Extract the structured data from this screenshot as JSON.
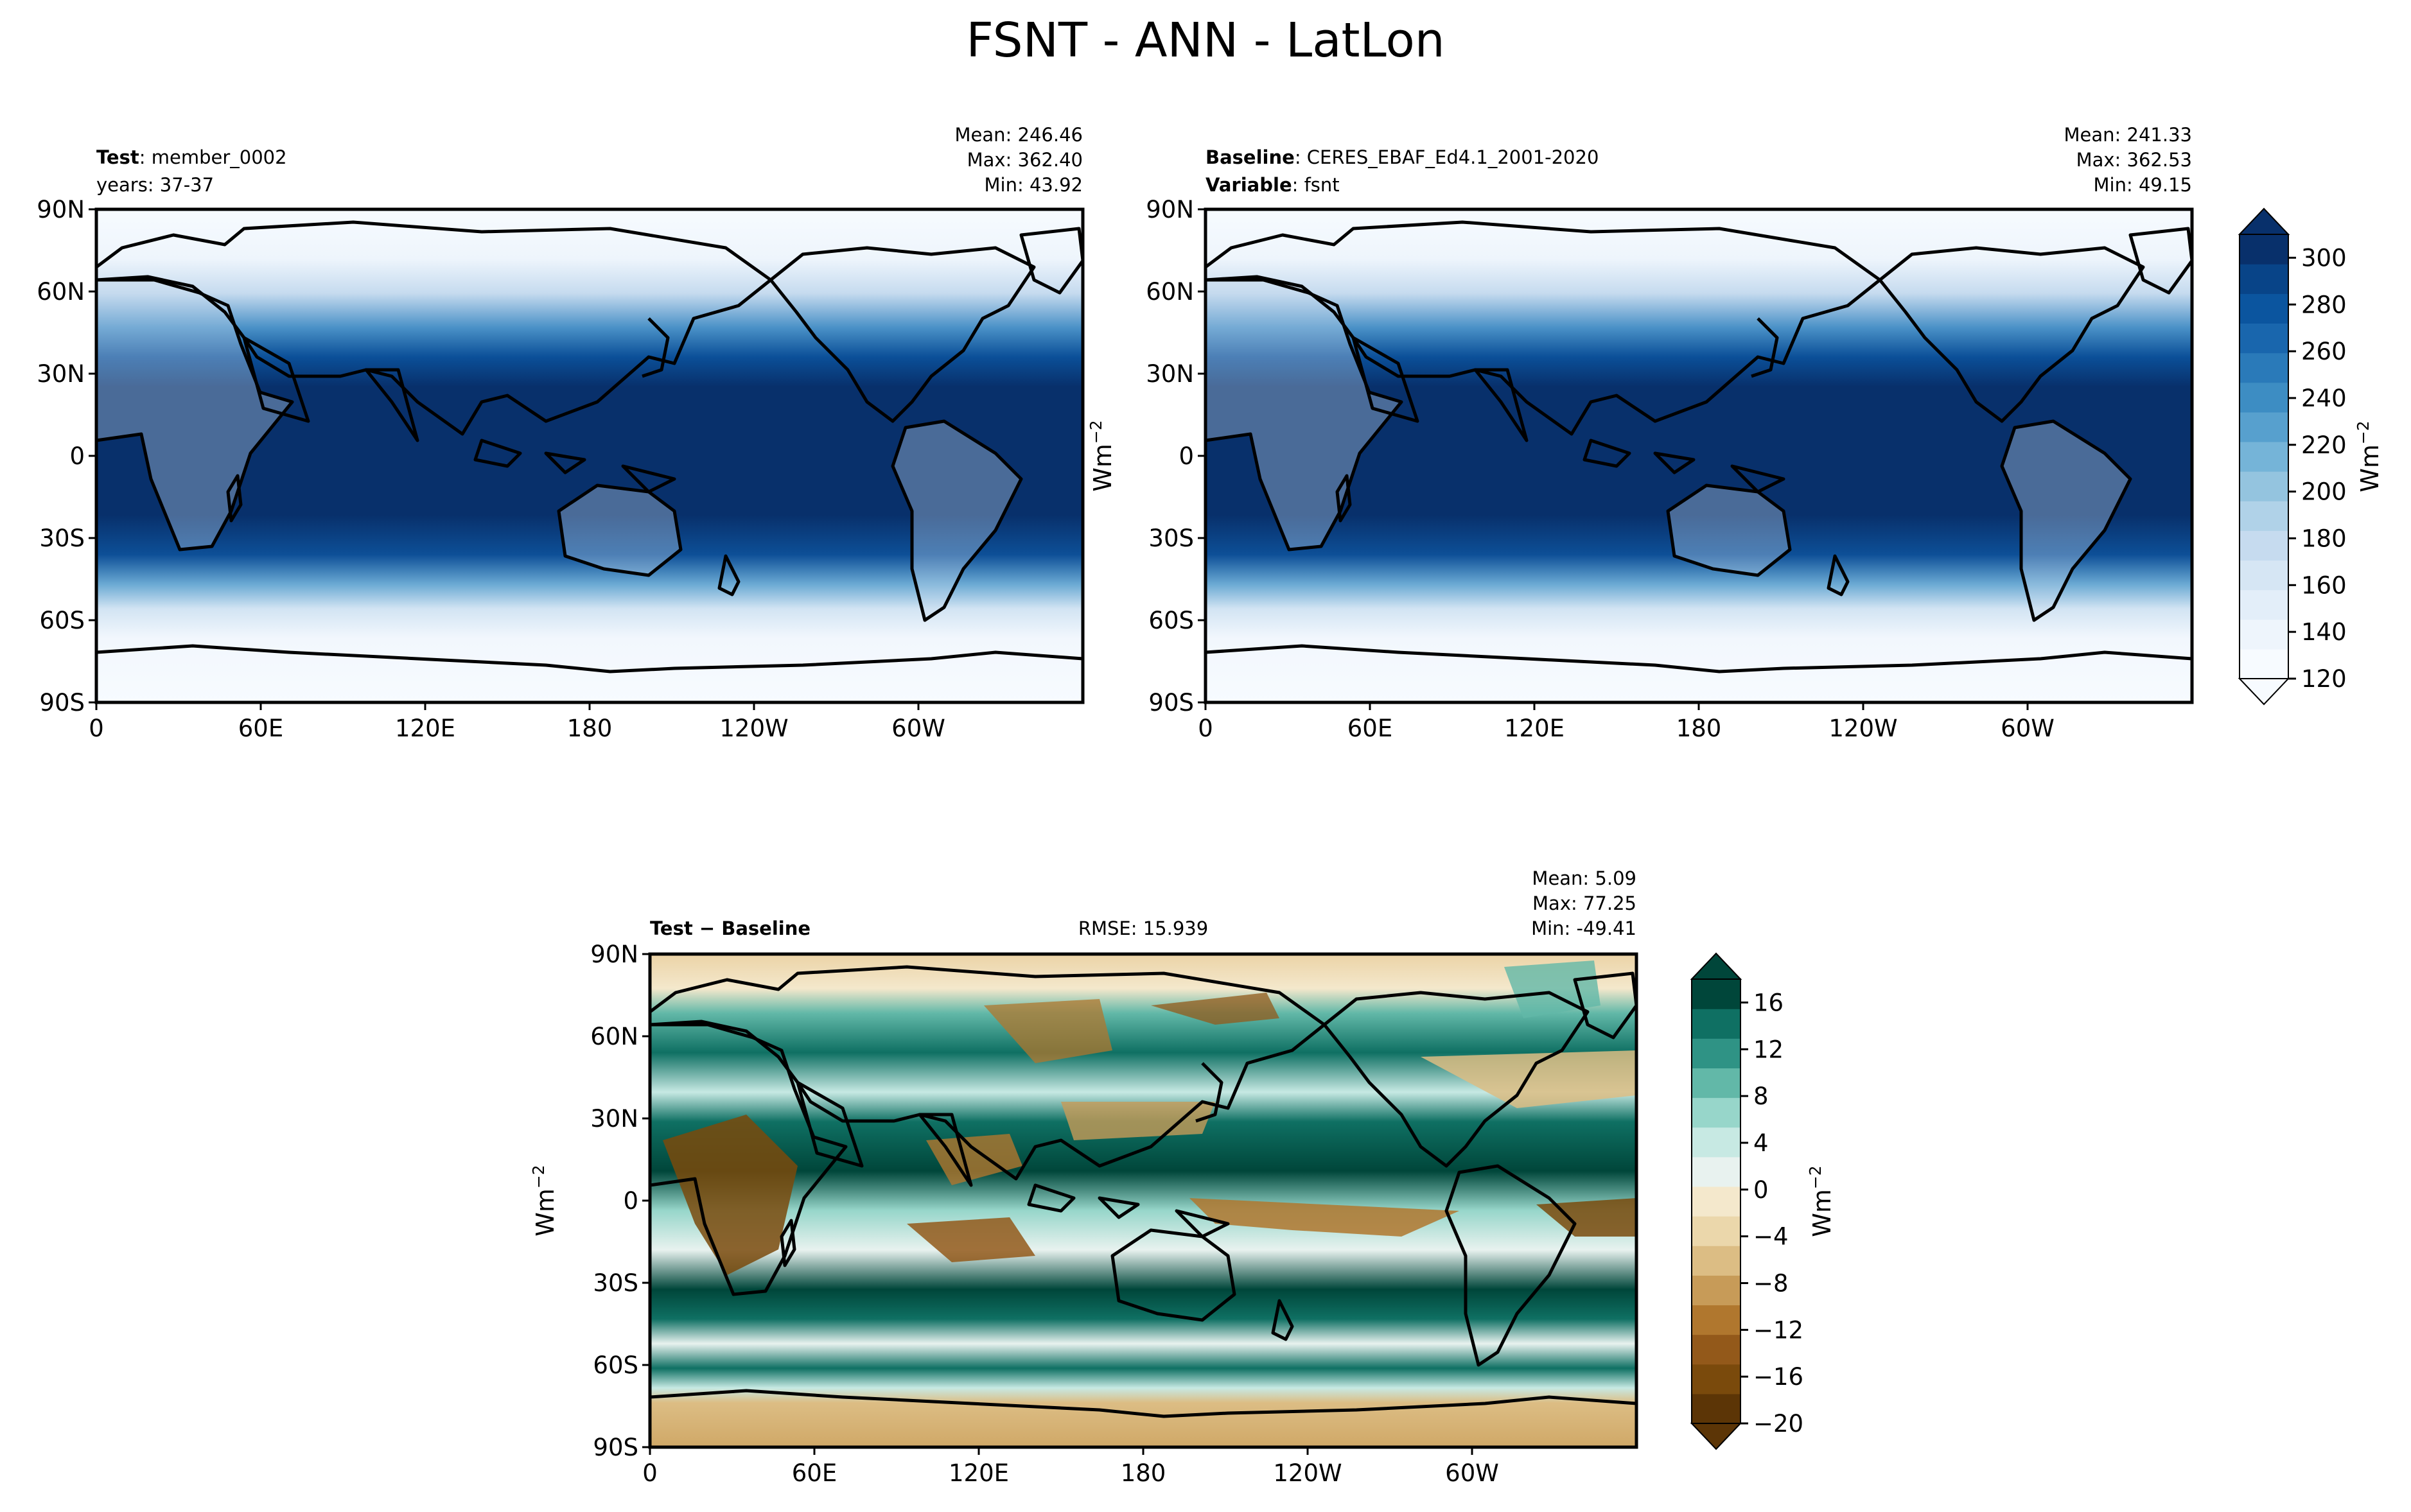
{
  "page_title": "FSNT - ANN - LatLon",
  "icons": {
    "colorbar_triangles": "colorbar-extend-triangle-icon"
  },
  "colors": {
    "ocean_low": "#f7fbff",
    "coast": "#000000",
    "diff_positive": "#00463a",
    "diff_negative": "#5c3506"
  },
  "chart_data": [
    {
      "type": "heatmap",
      "name": "test-map",
      "title_bold": "Test",
      "title_rest": ": member_0002",
      "subtitle": "years: 37-37",
      "stats": {
        "mean": "Mean: 246.46",
        "max": "Max: 362.40",
        "min": "Min: 43.92"
      },
      "x_ticks": [
        "0",
        "60E",
        "120E",
        "180",
        "120W",
        "60W"
      ],
      "y_ticks": [
        "90N",
        "60N",
        "30N",
        "0",
        "30S",
        "60S",
        "90S"
      ],
      "xlim": [
        0,
        360
      ],
      "ylim": [
        -90,
        90
      ],
      "colormap": "Blues"
    },
    {
      "type": "heatmap",
      "name": "baseline-map",
      "title_bold": "Baseline",
      "title_rest": ": CERES_EBAF_Ed4.1_2001-2020",
      "subtitle_bold": "Variable",
      "subtitle_rest": ": fsnt",
      "stats": {
        "mean": "Mean: 241.33",
        "max": "Max: 362.53",
        "min": "Min: 49.15"
      },
      "x_ticks": [
        "0",
        "60E",
        "120E",
        "180",
        "120W",
        "60W"
      ],
      "y_ticks": [
        "90N",
        "60N",
        "30N",
        "0",
        "30S",
        "60S",
        "90S"
      ],
      "xlim": [
        0,
        360
      ],
      "ylim": [
        -90,
        90
      ],
      "colormap": "Blues",
      "colorbar": {
        "label": "Wm",
        "label_sup": "−2",
        "ticks": [
          "120",
          "140",
          "160",
          "180",
          "200",
          "220",
          "240",
          "260",
          "280",
          "300"
        ],
        "range": [
          120,
          310
        ],
        "colors": [
          "#f7fbff",
          "#eef5fc",
          "#e3eef9",
          "#d6e6f4",
          "#c6dbef",
          "#b0d2e8",
          "#94c4df",
          "#75b4d8",
          "#57a0ce",
          "#3d8dc3",
          "#2a7ab9",
          "#1966ad",
          "#0b559f",
          "#084488",
          "#08306b"
        ]
      },
      "shared_ylabel": "Wm",
      "shared_ylabel_sup": "−2"
    },
    {
      "type": "heatmap",
      "name": "difference-map",
      "title_bold": "Test",
      "title_rest": " − Baseline",
      "rmse": "RMSE: 15.939",
      "stats": {
        "mean": "Mean:  5.09",
        "max": "Max: 77.25",
        "min": "Min: -49.41"
      },
      "x_ticks": [
        "0",
        "60E",
        "120E",
        "180",
        "120W",
        "60W"
      ],
      "y_ticks": [
        "90N",
        "60N",
        "30N",
        "0",
        "30S",
        "60S",
        "90S"
      ],
      "xlim": [
        0,
        360
      ],
      "ylim": [
        -90,
        90
      ],
      "colormap": "BrBG",
      "ylabel": "Wm",
      "ylabel_sup": "−2",
      "colorbar": {
        "label": "Wm",
        "label_sup": "−2",
        "ticks": [
          "−20",
          "−16",
          "−12",
          "−8",
          "−4",
          "0",
          "4",
          "8",
          "12",
          "16"
        ],
        "range": [
          -20,
          18
        ],
        "colors": [
          "#5c3506",
          "#7a4a0c",
          "#93591a",
          "#b0772e",
          "#c79b58",
          "#dcbd84",
          "#ebd7ab",
          "#f4e8cc",
          "#e8f2ef",
          "#c7e9e3",
          "#97d6ca",
          "#62b8a8",
          "#2f9385",
          "#0f7063",
          "#00463a"
        ]
      }
    }
  ]
}
